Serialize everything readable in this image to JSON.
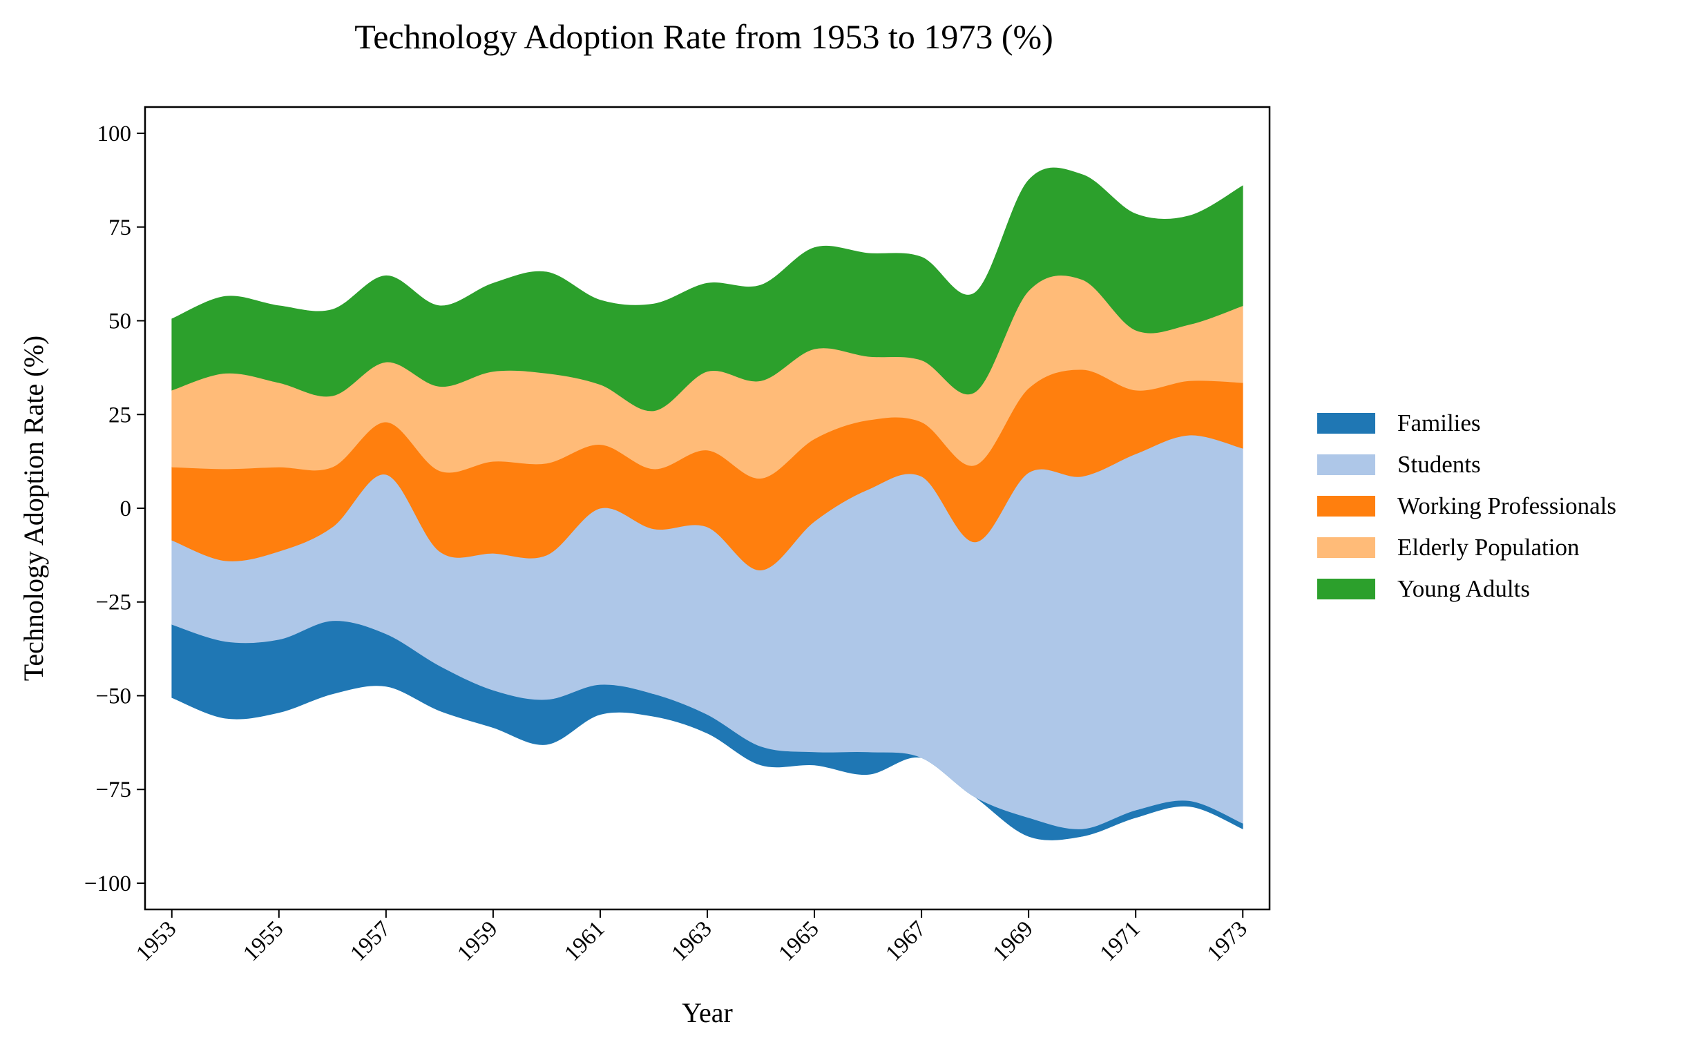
{
  "chart_data": {
    "type": "area",
    "subtype": "streamgraph",
    "title": "Technology Adoption Rate from 1953 to 1973 (%)",
    "xlabel": "Year",
    "ylabel": "Technology Adoption Rate (%)",
    "x": [
      1953,
      1954,
      1955,
      1956,
      1957,
      1958,
      1959,
      1960,
      1961,
      1962,
      1963,
      1964,
      1965,
      1966,
      1967,
      1968,
      1969,
      1970,
      1971,
      1972,
      1973
    ],
    "x_ticks": [
      "1953",
      "1955",
      "1957",
      "1959",
      "1961",
      "1963",
      "1965",
      "1967",
      "1969",
      "1971",
      "1973"
    ],
    "y_ticks": [
      100,
      75,
      50,
      25,
      0,
      -25,
      -50,
      -75,
      -100
    ],
    "y_tick_labels": [
      "100",
      "75",
      "50",
      "25",
      "0",
      "−25",
      "−50",
      "−75",
      "−100"
    ],
    "xlim": [
      1952.5,
      1973.5
    ],
    "ylim": [
      -107,
      107
    ],
    "grid": false,
    "legend_position": "center-right",
    "baseline": [
      -50.5,
      -56,
      -54.5,
      -49.5,
      -47.5,
      -54,
      -58.5,
      -63,
      -55,
      -55.5,
      -60,
      -68.5,
      -68.5,
      -71,
      -66.5,
      -77,
      -87.5,
      -87.5,
      -82.5,
      -79.5,
      -85.5
    ],
    "series": [
      {
        "name": "Families",
        "color": "#1f77b4",
        "values": [
          19.5,
          20.5,
          19.5,
          19.5,
          14,
          12,
          10,
          12,
          8,
          6,
          5,
          5,
          3.5,
          6,
          0,
          0,
          5,
          2,
          2,
          1.5,
          1.5
        ]
      },
      {
        "name": "Students",
        "color": "#aec7e8",
        "values": [
          22.5,
          21.5,
          23.5,
          25,
          42.5,
          30.5,
          36.5,
          38.5,
          47,
          44,
          50,
          47,
          61.5,
          70,
          75,
          68,
          92,
          94,
          95,
          97.5,
          100
        ]
      },
      {
        "name": "Working Professionals",
        "color": "#ff7f0e",
        "values": [
          19.5,
          24.5,
          22.5,
          16,
          14,
          21.5,
          24.5,
          24.5,
          17,
          16,
          20.5,
          24.5,
          22,
          18.5,
          14.5,
          20.5,
          22.5,
          28.5,
          17,
          14.5,
          17.5
        ]
      },
      {
        "name": "Elderly Population",
        "color": "#ffbb78",
        "values": [
          20.5,
          25.5,
          22.5,
          19,
          16,
          22.5,
          24,
          24,
          16,
          15.5,
          21,
          26,
          24,
          17,
          16.5,
          19.5,
          26,
          24,
          16,
          15,
          20.5
        ]
      },
      {
        "name": "Young Adults",
        "color": "#2ca02c",
        "values": [
          19,
          20.5,
          20.5,
          23,
          23,
          21.5,
          23.5,
          27,
          22.5,
          28.5,
          23.5,
          25.5,
          27,
          27.5,
          27.5,
          26.5,
          29.5,
          28,
          31,
          29,
          32
        ]
      }
    ]
  }
}
